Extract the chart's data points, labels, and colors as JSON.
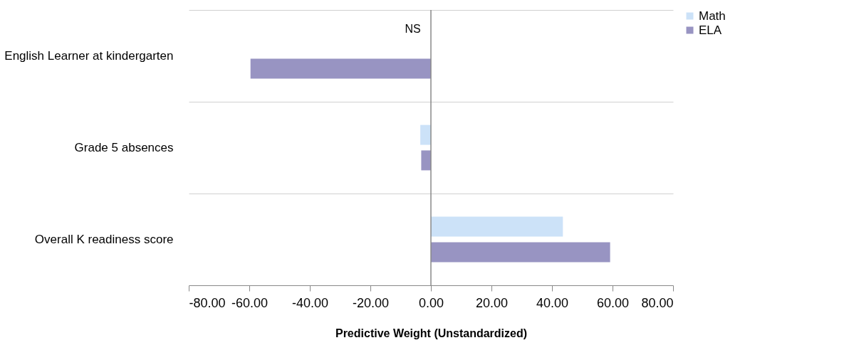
{
  "chart_data": {
    "type": "bar",
    "orientation": "horizontal",
    "categories": [
      "English Learner at kindergarten",
      "Grade 5 absences",
      "Overall K readiness score"
    ],
    "series": [
      {
        "name": "Math",
        "color": "#cce2f8",
        "values": [
          null,
          -3.5,
          43.6
        ]
      },
      {
        "name": "ELA",
        "color": "#9894c2",
        "values": [
          -59.6,
          -3.2,
          59.2
        ]
      }
    ],
    "xlim": [
      -80,
      80
    ],
    "xticks": [
      {
        "value": -80,
        "label": "-80.00"
      },
      {
        "value": -60,
        "label": "-60.00"
      },
      {
        "value": -40,
        "label": "-40.00"
      },
      {
        "value": -20,
        "label": "-20.00"
      },
      {
        "value": 0,
        "label": "0.00"
      },
      {
        "value": 20,
        "label": "20.00"
      },
      {
        "value": 40,
        "label": "40.00"
      },
      {
        "value": 60,
        "label": "60.00"
      },
      {
        "value": 80,
        "label": "80.00"
      }
    ],
    "xlabel": "Predictive Weight (Unstandardized)",
    "annotations": [
      {
        "text": "NS",
        "x": -6,
        "y": "English Learner at kindergarten"
      }
    ],
    "grid": "y",
    "legend": "right"
  }
}
